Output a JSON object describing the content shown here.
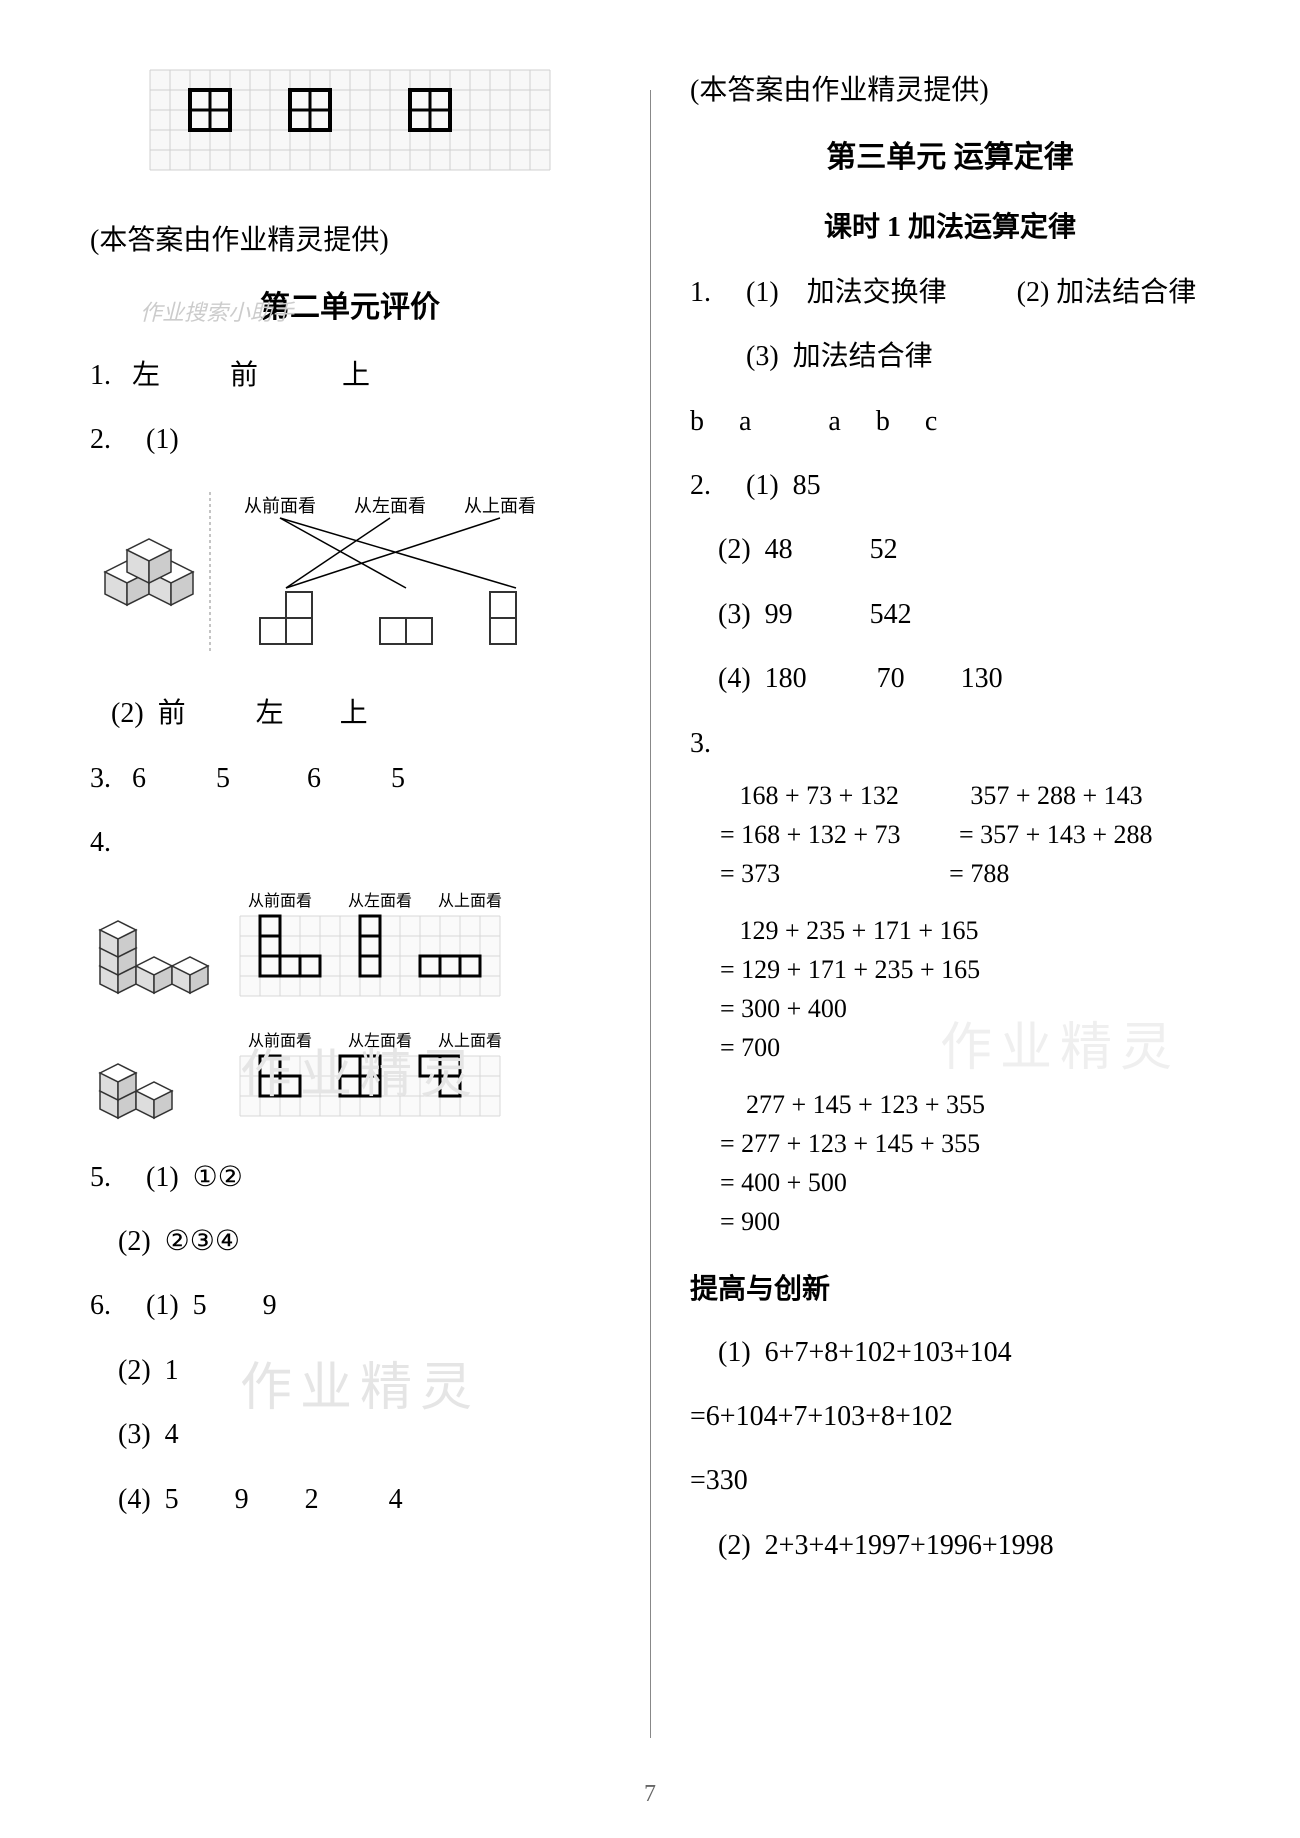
{
  "page_number": "7",
  "provider_note": "(本答案由作业精灵提供)",
  "watermark_text": "作业精灵",
  "watermark_sub": "作业搜索小助手",
  "left": {
    "top_grid": {
      "grid_rows": 5,
      "grid_cols": 20,
      "cell_size": 20,
      "tiles": [
        [
          2,
          1
        ],
        [
          7,
          1
        ],
        [
          13,
          1
        ]
      ],
      "tile_size": 2,
      "bg": "#f8f8f8",
      "grid_color": "#d0d0d0",
      "bold_color": "#000000"
    },
    "section_title": "第二单元评价",
    "q1": "1.   左          前            上",
    "q2_head": "2.     (1)",
    "matching_figure": {
      "left_cube": true,
      "labels": [
        "从前面看",
        "从左面看",
        "从上面看"
      ],
      "shapes": [
        {
          "cells": [
            [
              0,
              1
            ],
            [
              1,
              0
            ],
            [
              1,
              1
            ]
          ],
          "x": 0
        },
        {
          "cells": [
            [
              1,
              0
            ],
            [
              1,
              1
            ]
          ],
          "x": 1
        },
        {
          "cells": [
            [
              0,
              0
            ],
            [
              1,
              0
            ]
          ],
          "x": 2
        }
      ],
      "connections": [
        [
          0,
          1
        ],
        [
          0,
          2
        ],
        [
          1,
          0
        ],
        [
          2,
          0
        ]
      ],
      "label_fontsize": 18,
      "line_color": "#000000"
    },
    "q2_2": "   (2)  前          左        上",
    "q3": "3.   6          5           6          5",
    "q4_head": "4.",
    "q4_figures": [
      {
        "cube_type": "L",
        "labels": [
          "从前面看",
          "从左面看",
          "从上面看"
        ],
        "grid_rows": 4,
        "grid_cols": 13,
        "cell_size": 20,
        "shapes": [
          {
            "cells": [
              [
                0,
                0
              ],
              [
                1,
                0
              ],
              [
                2,
                0
              ],
              [
                2,
                1
              ],
              [
                2,
                2
              ]
            ],
            "col": 1,
            "row_off": 0
          },
          {
            "cells": [
              [
                0,
                0
              ],
              [
                1,
                0
              ],
              [
                2,
                0
              ]
            ],
            "col": 6,
            "row_off": 0
          },
          {
            "cells": [
              [
                0,
                0
              ],
              [
                0,
                1
              ],
              [
                0,
                2
              ]
            ],
            "col": 9,
            "row_off": 2
          }
        ]
      },
      {
        "cube_type": "step",
        "labels": [
          "从前面看",
          "从左面看",
          "从上面看"
        ],
        "grid_rows": 3,
        "grid_cols": 13,
        "cell_size": 20,
        "shapes": [
          {
            "cells": [
              [
                0,
                0
              ],
              [
                1,
                0
              ],
              [
                1,
                1
              ]
            ],
            "col": 1,
            "row_off": 0
          },
          {
            "cells": [
              [
                0,
                0
              ],
              [
                0,
                1
              ],
              [
                1,
                0
              ],
              [
                1,
                1
              ]
            ],
            "col": 5,
            "row_off": 0
          },
          {
            "cells": [
              [
                0,
                0
              ],
              [
                0,
                1
              ],
              [
                1,
                1
              ]
            ],
            "col": 9,
            "row_off": 0
          }
        ]
      }
    ],
    "q5_1": "5.     (1)  ①②",
    "q5_2": "    (2)  ②③④",
    "q6_1": "6.     (1)  5        9",
    "q6_2": "    (2)  1",
    "q6_3": "    (3)  4",
    "q6_4": "    (4)  5        9        2          4"
  },
  "right": {
    "unit_title": "第三单元  运算定律",
    "lesson_title": "课时 1    加法运算定律",
    "q1_a": "1.     (1)    加法交换律          (2) 加法结合律",
    "q1_b": "        (3)  加法结合律",
    "q1_c": "b     a           a     b     c",
    "q2_1": "2.     (1)  85",
    "q2_2": "    (2)  48           52",
    "q2_3": "    (3)  99           542",
    "q2_4": "    (4)  180          70        130",
    "q3_head": "3.",
    "calc1": [
      "   168 + 73 + 132           357 + 288 + 143",
      "= 168 + 132 + 73         = 357 + 143 + 288",
      "= 373                          = 788"
    ],
    "calc2": [
      "   129 + 235 + 171 + 165",
      "= 129 + 171 + 235 + 165",
      "= 300 + 400",
      "= 700"
    ],
    "calc3": [
      "    277 + 145 + 123 + 355",
      "= 277 + 123 + 145 + 355",
      "= 400 + 500",
      "= 900"
    ],
    "improve_title": "提高与创新",
    "imp1_a": "    (1)  6+7+8+102+103+104",
    "imp1_b": "=6+104+7+103+8+102",
    "imp1_c": "=330",
    "imp2": "    (2)  2+3+4+1997+1996+1998"
  }
}
